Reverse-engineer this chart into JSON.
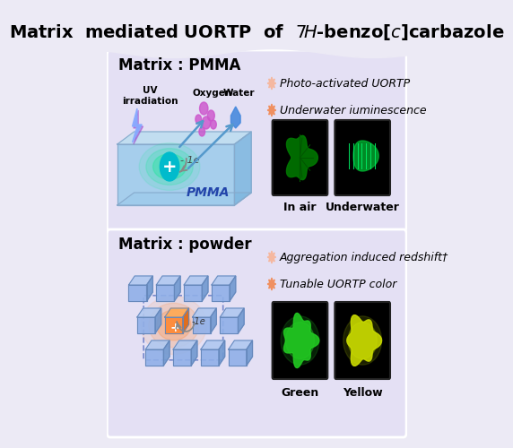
{
  "title": "Matrix  mediated UORTP  of  $\\it{7H}$-benzo[$\\it{c}$]carbazole",
  "bg_color": "#eceaf5",
  "top_panel_bg": "#e4e0f4",
  "bottom_panel_bg": "#e4e0f4",
  "top_label": "Matrix : PMMA",
  "bottom_label": "Matrix : powder",
  "top_bullets": [
    "Photo-activated UORTP",
    "Underwater iuminescence"
  ],
  "bottom_bullets": [
    "Aggregation induced redshift†",
    "Tunable UORTP color"
  ],
  "top_img_labels": [
    "In air",
    "Underwater"
  ],
  "bottom_img_labels": [
    "Green",
    "Yellow"
  ],
  "bullet_color_light": "#f5b8a0",
  "bullet_color_dark": "#f09060",
  "pmma_top_color": "#c0ddf0",
  "pmma_front_color": "#a0ccec",
  "pmma_right_color": "#80b8e0",
  "pmma_bot_color": "#90c8e8",
  "arrow_color": "#5599cc",
  "oxygen_color": "#cc55cc",
  "water_color": "#4488dd",
  "lightning_blue": "#88aaff",
  "lightning_purple": "#9944cc",
  "circle_teal": "#00bbcc",
  "glow_green": "#00ee88",
  "pmma_label_color": "#2244aa"
}
